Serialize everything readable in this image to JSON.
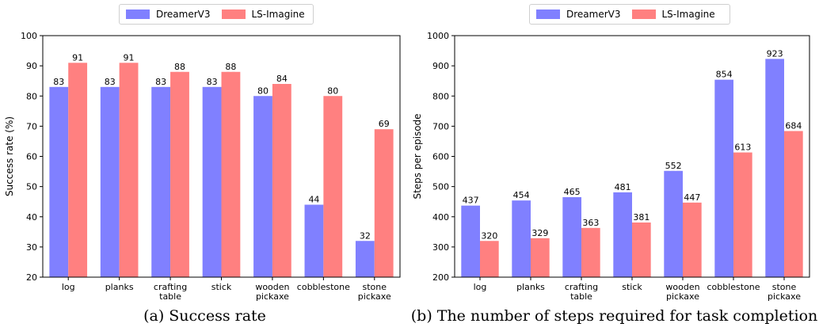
{
  "legend": {
    "items": [
      {
        "label": "DreamerV3",
        "color": "#8080ff"
      },
      {
        "label": "LS-Imagine",
        "color": "#ff8080"
      }
    ]
  },
  "captions": {
    "a": "(a)  Success rate",
    "b": "(b)  The number of steps required for task completion"
  },
  "chart_data": [
    {
      "type": "bar",
      "categories": [
        [
          "log"
        ],
        [
          "planks"
        ],
        [
          "crafting",
          "table"
        ],
        [
          "stick"
        ],
        [
          "wooden",
          "pickaxe"
        ],
        [
          "cobblestone"
        ],
        [
          "stone",
          "pickaxe"
        ]
      ],
      "series": [
        {
          "name": "DreamerV3",
          "values": [
            83,
            83,
            83,
            83,
            80,
            44,
            32
          ]
        },
        {
          "name": "LS-Imagine",
          "values": [
            91,
            91,
            88,
            88,
            84,
            80,
            69
          ]
        }
      ],
      "xlabel": "",
      "ylabel": "Success rate (%)",
      "ylim": [
        20,
        100
      ],
      "yticks": [
        20,
        30,
        40,
        50,
        60,
        70,
        80,
        90,
        100
      ],
      "grid": false,
      "legend_position": "top-center"
    },
    {
      "type": "bar",
      "categories": [
        [
          "log"
        ],
        [
          "planks"
        ],
        [
          "crafting",
          "table"
        ],
        [
          "stick"
        ],
        [
          "wooden",
          "pickaxe"
        ],
        [
          "cobblestone"
        ],
        [
          "stone",
          "pickaxe"
        ]
      ],
      "series": [
        {
          "name": "DreamerV3",
          "values": [
            437,
            454,
            465,
            481,
            552,
            854,
            923
          ]
        },
        {
          "name": "LS-Imagine",
          "values": [
            320,
            329,
            363,
            381,
            447,
            613,
            684
          ]
        }
      ],
      "xlabel": "",
      "ylabel": "Steps per episode",
      "ylim": [
        200,
        1000
      ],
      "yticks": [
        200,
        300,
        400,
        500,
        600,
        700,
        800,
        900,
        1000
      ],
      "grid": false,
      "legend_position": "top-center"
    }
  ]
}
